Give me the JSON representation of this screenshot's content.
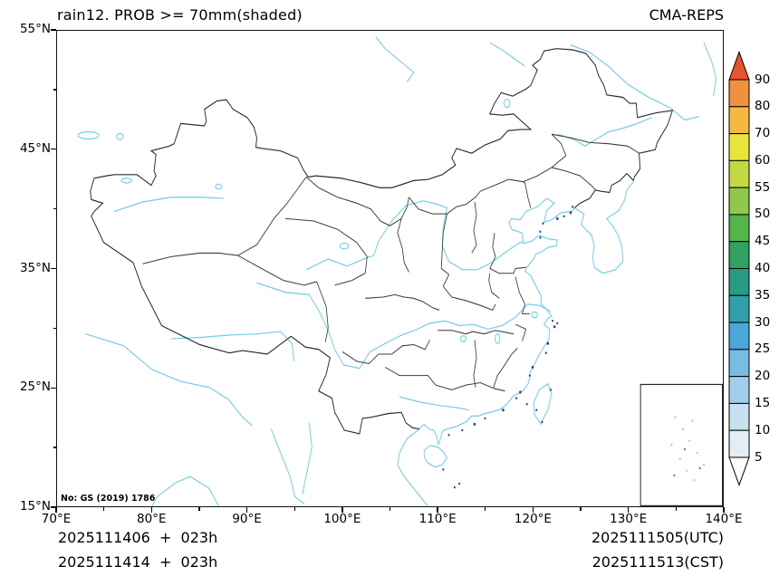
{
  "header": {
    "title": "rain12. PROB >= 70mm(shaded)",
    "model_label": "CMA-REPS"
  },
  "map": {
    "license_note": "No: GS (2019) 1786"
  },
  "axes": {
    "lat_labels": [
      "55°N",
      "45°N",
      "35°N",
      "25°N",
      "15°N"
    ],
    "lon_labels": [
      "70°E",
      "80°E",
      "90°E",
      "100°E",
      "110°E",
      "120°E",
      "130°E",
      "140°E"
    ]
  },
  "colorbar": {
    "tick_labels": [
      "90",
      "80",
      "70",
      "60",
      "55",
      "50",
      "45",
      "40",
      "35",
      "30",
      "25",
      "20",
      "15",
      "10",
      "5"
    ],
    "colors_top_to_bottom": [
      "#e8542c",
      "#f0923c",
      "#f6b93f",
      "#eae33c",
      "#c2d943",
      "#8fc84a",
      "#55b44c",
      "#2ea163",
      "#279c85",
      "#2fa0ac",
      "#4aa8d8",
      "#79bce2",
      "#a3cee9",
      "#c8e0f0",
      "#e2edf5",
      "#fbfdfe"
    ]
  },
  "footer": {
    "run_line_utc": "2025111406  +  023h",
    "run_line_cst": "2025111414  +  023h",
    "valid_utc": "2025111505(UTC)",
    "valid_cst": "2025111513(CST)"
  }
}
